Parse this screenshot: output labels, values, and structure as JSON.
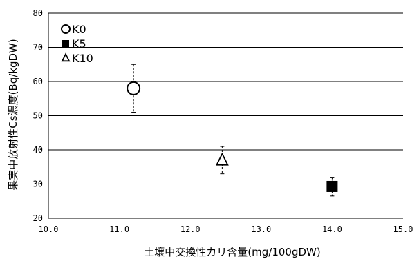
{
  "chart_data": {
    "type": "scatter",
    "title": "",
    "xlabel": "土壌中交換性カリ含量(mg/100gDW)",
    "ylabel": "果実中放射性Cs濃度(Bq/kgDW)",
    "xlim": [
      10.0,
      15.0
    ],
    "ylim": [
      20,
      80
    ],
    "x_ticks": [
      "10.0",
      "11.0",
      "12.0",
      "13.0",
      "14.0",
      "15.0"
    ],
    "y_ticks": [
      "20",
      "30",
      "40",
      "50",
      "60",
      "70",
      "80"
    ],
    "grid": "horizontal",
    "legend_position": "top-left",
    "series": [
      {
        "name": "K0",
        "marker": "circle-open",
        "x": 11.2,
        "y": 58,
        "err_low": 51,
        "err_high": 65
      },
      {
        "name": "K5",
        "marker": "square-filled",
        "x": 14.0,
        "y": 29.3,
        "err_low": 26.5,
        "err_high": 32
      },
      {
        "name": "K10",
        "marker": "triangle-open",
        "x": 12.45,
        "y": 37,
        "err_low": 33,
        "err_high": 41
      }
    ]
  }
}
